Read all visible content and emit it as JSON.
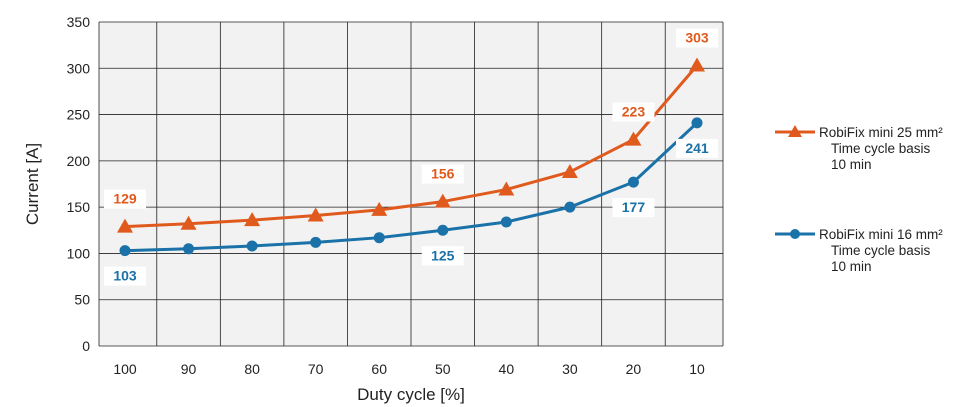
{
  "chart_data": {
    "type": "line",
    "xlabel": "Duty cycle [%]",
    "ylabel": "Current [A]",
    "categories": [
      "100",
      "90",
      "80",
      "70",
      "60",
      "50",
      "40",
      "30",
      "20",
      "10"
    ],
    "ylim": [
      0,
      350
    ],
    "yticks": [
      0,
      50,
      100,
      150,
      200,
      250,
      300,
      350
    ],
    "grid": true,
    "legend_position": "right",
    "series": [
      {
        "name": "RobiFix mini 25 mm²",
        "note_line1": "Time cycle basis",
        "note_line2": "10 min",
        "marker": "triangle",
        "color": "#e05a1e",
        "values": [
          129,
          132,
          136,
          141,
          147,
          156,
          169,
          188,
          223,
          303
        ],
        "labeled": [
          {
            "index": 0,
            "text": "129",
            "position": "above"
          },
          {
            "index": 5,
            "text": "156",
            "position": "above"
          },
          {
            "index": 8,
            "text": "223",
            "position": "above"
          },
          {
            "index": 9,
            "text": "303",
            "position": "above"
          }
        ]
      },
      {
        "name": "RobiFix mini 16 mm²",
        "note_line1": "Time cycle basis",
        "note_line2": "10 min",
        "marker": "circle",
        "color": "#1a72a8",
        "values": [
          103,
          105,
          108,
          112,
          117,
          125,
          134,
          150,
          177,
          241
        ],
        "labeled": [
          {
            "index": 0,
            "text": "103",
            "position": "below"
          },
          {
            "index": 5,
            "text": "125",
            "position": "below"
          },
          {
            "index": 8,
            "text": "177",
            "position": "below"
          },
          {
            "index": 9,
            "text": "241",
            "position": "below"
          }
        ]
      }
    ]
  }
}
